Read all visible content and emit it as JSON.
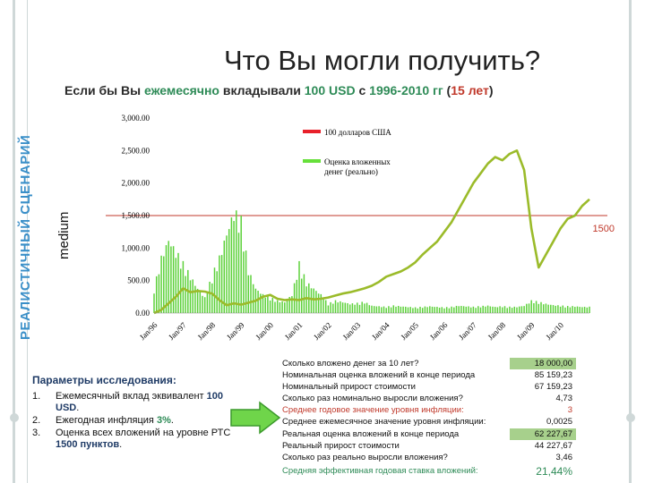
{
  "page": {
    "title": "Что Вы могли получить?",
    "subtitle_parts": [
      "Если бы Вы ",
      "ежемесячно",
      " вкладывали ",
      "100 USD",
      " с ",
      "1996-2010 гг",
      " (",
      "15 лет",
      ")"
    ],
    "side_label": "РЕАЛИСТИЧНЫЙ СЦЕНАРИЙ"
  },
  "chart_data": {
    "type": "bar+line",
    "ylabel": "medium",
    "ylim": [
      0,
      3000
    ],
    "yticks": [
      "3,000.00",
      "2,500.00",
      "2,000.00",
      "1,500.00",
      "1,000.00",
      "500.00",
      "0.00"
    ],
    "ytick_values": [
      3000,
      2500,
      2000,
      1500,
      1000,
      500,
      0
    ],
    "x_categories": [
      "Jan/96",
      "Jan/97",
      "Jan/98",
      "Jan/99",
      "Jan/00",
      "Jan/01",
      "Jan/02",
      "Jan/03",
      "Jan/04",
      "Jan/05",
      "Jan/06",
      "Jan/07",
      "Jan/08",
      "Jan/09",
      "Jan/10"
    ],
    "reference_line": {
      "value": 1500,
      "label": "1500",
      "color": "#c0392b"
    },
    "legend": [
      {
        "name": "100 долларов США",
        "color": "#e8202a"
      },
      {
        "name": "Оценка вложенных денег (реально)",
        "color": "#66e03a"
      }
    ],
    "series": [
      {
        "name": "Оценка вложенных денег (реально)",
        "type": "line",
        "color": "#9bbb2a",
        "x": [
          0,
          3,
          6,
          9,
          12,
          15,
          18,
          21,
          24,
          27,
          30,
          33,
          36,
          39,
          42,
          45,
          48,
          51,
          54,
          57,
          60,
          63,
          66,
          69,
          72,
          75,
          78,
          81,
          84,
          87,
          90,
          93,
          96,
          99,
          102,
          105,
          108,
          111,
          114,
          117,
          120,
          123,
          126,
          129,
          132,
          135,
          138,
          141,
          144,
          147,
          150,
          153,
          156,
          159,
          162,
          165,
          168,
          171,
          174,
          177,
          180
        ],
        "values": [
          0,
          50,
          150,
          250,
          380,
          320,
          340,
          330,
          300,
          200,
          120,
          150,
          130,
          160,
          190,
          250,
          280,
          220,
          200,
          210,
          200,
          230,
          210,
          220,
          240,
          270,
          300,
          320,
          350,
          380,
          420,
          480,
          560,
          600,
          640,
          700,
          780,
          900,
          1000,
          1100,
          1250,
          1400,
          1600,
          1800,
          2000,
          2150,
          2300,
          2400,
          2350,
          2450,
          2500,
          2200,
          1300,
          700,
          900,
          1100,
          1300,
          1450,
          1500,
          1650,
          1750
        ]
      },
      {
        "name": "100 долларов США",
        "type": "bar",
        "color": "#5cd13a",
        "x": [
          0,
          3,
          6,
          9,
          12,
          15,
          18,
          21,
          24,
          27,
          30,
          33,
          36,
          39,
          42,
          45,
          48,
          51,
          54,
          57,
          60,
          63,
          66,
          69,
          72,
          75,
          78,
          81,
          84,
          87,
          90,
          93,
          96,
          99,
          102,
          105,
          108,
          111,
          114,
          117,
          120,
          123,
          126,
          129,
          132,
          135,
          138,
          141,
          144,
          147,
          150,
          153,
          156,
          159,
          162,
          165,
          168,
          171,
          174,
          177,
          180
        ],
        "values": [
          400,
          900,
          1200,
          1000,
          800,
          600,
          400,
          250,
          600,
          900,
          1300,
          1650,
          1500,
          700,
          400,
          300,
          250,
          200,
          180,
          300,
          800,
          500,
          400,
          300,
          150,
          200,
          180,
          150,
          160,
          180,
          120,
          110,
          100,
          120,
          110,
          100,
          90,
          100,
          110,
          100,
          90,
          100,
          120,
          110,
          100,
          110,
          120,
          100,
          110,
          100,
          100,
          120,
          200,
          180,
          150,
          130,
          120,
          110,
          110,
          100,
          100
        ]
      }
    ]
  },
  "params": {
    "title": "Параметры исследования:",
    "items": [
      {
        "num": "1.",
        "parts": [
          "Ежемесячный вклад эквивалент ",
          "100 USD",
          "."
        ]
      },
      {
        "num": "2.",
        "parts": [
          "Ежегодная инфляция ",
          "3%",
          "."
        ]
      },
      {
        "num": "3.",
        "parts": [
          "Оценка всех вложений на уровне РТС ",
          "1500 пунктов",
          "."
        ]
      }
    ]
  },
  "stats": [
    {
      "label": "Сколько вложено денег за 10 лет?",
      "value": "18 000,00",
      "boxed": true
    },
    {
      "label": "Номинальная оценка вложений в конце периода",
      "value": "85 159,23"
    },
    {
      "label": "Номинальный прирост стоимости",
      "value": "67 159,23"
    },
    {
      "label": "Сколько раз номинально выросли вложения?",
      "value": "4,73"
    },
    {
      "label": "Среднее годовое значение уровня инфляции:",
      "value": "3",
      "style": "red"
    },
    {
      "label": "Среднее ежемесячное значение уровня инфляции:",
      "value": "0,0025"
    },
    {
      "label": "Реальная оценка вложений в конце периода",
      "value": "62 227,67",
      "boxed": true
    },
    {
      "label": "Реальный прирост стоимости",
      "value": "44 227,67"
    },
    {
      "label": "Сколько раз реально выросли вложения?",
      "value": "3,46"
    },
    {
      "label": "Средняя эффективная годовая ставка вложений:",
      "value": "21,44%",
      "style": "green final"
    }
  ]
}
